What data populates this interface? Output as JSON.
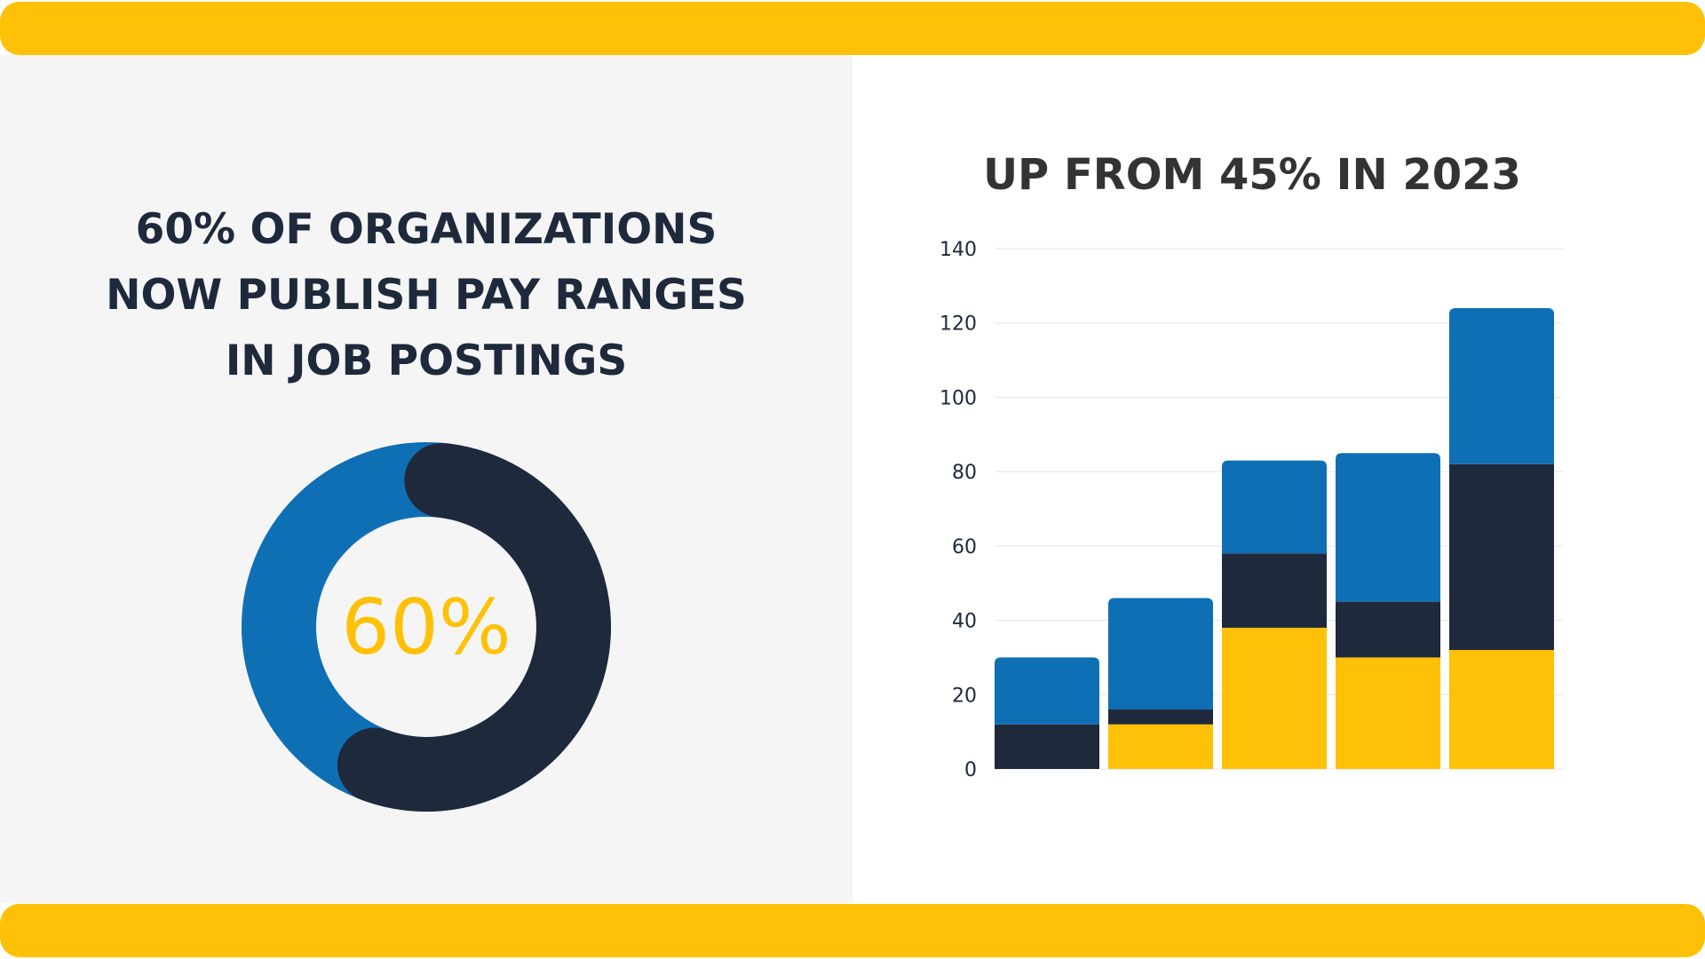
{
  "colors": {
    "accent_yellow": "#FFC107",
    "blue": "#0F6FB5",
    "navy": "#1E293B",
    "panel_bg": "#F5F5F5",
    "grid": "#E5E5E5"
  },
  "left": {
    "heading_lines": [
      "60% OF ORGANIZATIONS",
      "NOW PUBLISH PAY RANGES",
      "IN JOB POSTINGS"
    ],
    "donut": {
      "percent": 60,
      "center_label": "60%"
    }
  },
  "right": {
    "heading": "UP FROM 45% IN 2023"
  },
  "chart_data": [
    {
      "type": "pie",
      "variant": "donut",
      "values": [
        60,
        40
      ],
      "center_label": "60%"
    },
    {
      "type": "bar",
      "stacked": true,
      "title": "UP FROM 45% IN 2023",
      "xlabel": "",
      "ylabel": "",
      "categories": [
        "",
        "",
        "",
        "",
        ""
      ],
      "ylim": [
        0,
        140
      ],
      "yticks": [
        0,
        20,
        40,
        60,
        80,
        100,
        120,
        140
      ],
      "grid": true,
      "legend": false,
      "series": [
        {
          "color": "#FFC107",
          "values": [
            0,
            12,
            38,
            30,
            32
          ]
        },
        {
          "color": "#1E293B",
          "values": [
            12,
            4,
            20,
            15,
            50
          ]
        },
        {
          "color": "#0F6FB5",
          "values": [
            18,
            30,
            25,
            40,
            42
          ]
        }
      ]
    }
  ]
}
